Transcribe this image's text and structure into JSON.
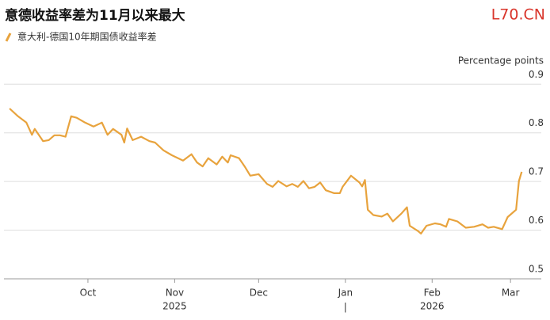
{
  "chart_data": {
    "type": "line",
    "title": "意德收益率差为11月以来最大",
    "code": "L70.CN",
    "y_unit": "Percentage points",
    "x": [
      2,
      5,
      8,
      10,
      11,
      14,
      16,
      18,
      20,
      22,
      24,
      26,
      29,
      32,
      35,
      37,
      39,
      42,
      43,
      44,
      46,
      49,
      52,
      54,
      57,
      60,
      64,
      67,
      69,
      71,
      73,
      76,
      78,
      80,
      81,
      84,
      86,
      88,
      91,
      94,
      96,
      98,
      101,
      103,
      105,
      107,
      109,
      111,
      113,
      115,
      118,
      120,
      121,
      124,
      127,
      128,
      129,
      130,
      132,
      135,
      137,
      139,
      142,
      144,
      145,
      148,
      149,
      151,
      154,
      156,
      158,
      159,
      162,
      165,
      168,
      171,
      173,
      175,
      178,
      180,
      183,
      184,
      185
    ],
    "series": [
      {
        "name": "意大利-德国10年期国债收益率差",
        "color": "#e8a33d",
        "values": [
          0.85,
          0.834,
          0.821,
          0.796,
          0.808,
          0.783,
          0.785,
          0.795,
          0.795,
          0.792,
          0.834,
          0.831,
          0.821,
          0.813,
          0.821,
          0.796,
          0.808,
          0.796,
          0.78,
          0.809,
          0.785,
          0.792,
          0.783,
          0.78,
          0.764,
          0.754,
          0.743,
          0.756,
          0.739,
          0.731,
          0.748,
          0.735,
          0.751,
          0.739,
          0.754,
          0.748,
          0.731,
          0.712,
          0.715,
          0.695,
          0.689,
          0.701,
          0.69,
          0.695,
          0.689,
          0.701,
          0.686,
          0.689,
          0.698,
          0.682,
          0.676,
          0.676,
          0.689,
          0.712,
          0.698,
          0.69,
          0.703,
          0.642,
          0.631,
          0.628,
          0.634,
          0.618,
          0.634,
          0.647,
          0.609,
          0.598,
          0.593,
          0.609,
          0.614,
          0.612,
          0.607,
          0.623,
          0.618,
          0.605,
          0.607,
          0.612,
          0.605,
          0.607,
          0.602,
          0.627,
          0.642,
          0.701,
          0.72
        ]
      }
    ],
    "xlim": [
      0,
      192
    ],
    "xticks": [
      {
        "value": 30,
        "label": "Oct"
      },
      {
        "value": 61,
        "label": "Nov"
      },
      {
        "value": 91,
        "label": "Dec"
      },
      {
        "value": 122,
        "label": "Jan"
      },
      {
        "value": 153,
        "label": "Feb"
      },
      {
        "value": 181,
        "label": "Mar"
      }
    ],
    "year_labels": [
      {
        "value": 61,
        "label": "2025"
      },
      {
        "value": 153,
        "label": "2026"
      }
    ],
    "year_divider": {
      "value": 122,
      "label": "|"
    },
    "ylim": [
      0.5,
      0.92
    ],
    "yticks": [
      0.5,
      0.6,
      0.7,
      0.8,
      0.9
    ],
    "grid": true
  }
}
